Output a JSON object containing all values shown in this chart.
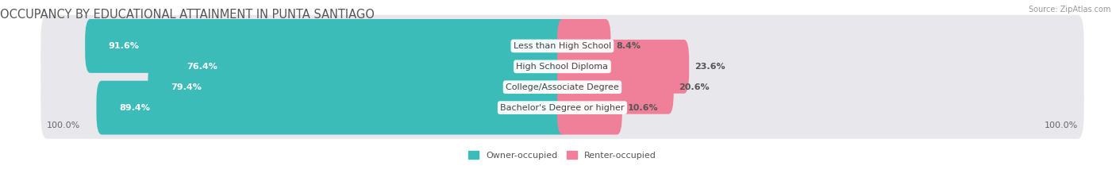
{
  "title": "OCCUPANCY BY EDUCATIONAL ATTAINMENT IN PUNTA SANTIAGO",
  "source": "Source: ZipAtlas.com",
  "categories": [
    "Less than High School",
    "High School Diploma",
    "College/Associate Degree",
    "Bachelor's Degree or higher"
  ],
  "owner_values": [
    91.6,
    76.4,
    79.4,
    89.4
  ],
  "renter_values": [
    8.4,
    23.6,
    20.6,
    10.6
  ],
  "owner_color": "#3bbcb8",
  "renter_color": "#f08099",
  "bar_bg_color": "#e8e8ec",
  "owner_label": "Owner-occupied",
  "renter_label": "Renter-occupied",
  "axis_label_left": "100.0%",
  "axis_label_right": "100.0%",
  "title_fontsize": 10.5,
  "label_fontsize": 8.0,
  "value_fontsize": 8.0,
  "bar_height": 0.62,
  "figsize": [
    14.06,
    2.33
  ],
  "dpi": 100
}
